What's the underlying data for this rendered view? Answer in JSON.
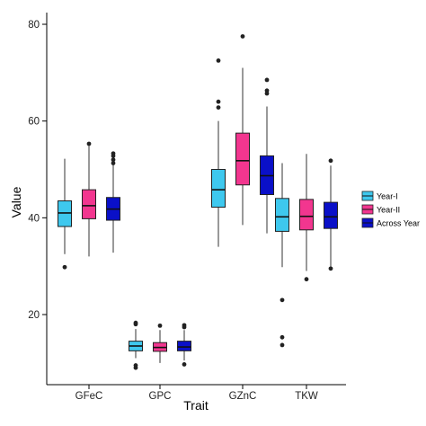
{
  "chart_data": {
    "type": "box",
    "xlabel": "Trait",
    "ylabel": "Value",
    "ylim": [
      6,
      82
    ],
    "yticks": [
      20,
      40,
      60,
      80
    ],
    "categories": [
      "GFeC",
      "GPC",
      "GZnC",
      "TKW"
    ],
    "legend_position": "right",
    "series": [
      {
        "name": "Year-I",
        "color": "#3ec8ee",
        "boxes": [
          {
            "min": 32.5,
            "q1": 38.2,
            "median": 41.0,
            "q3": 43.5,
            "max": 52.2,
            "outliers": [
              29.8
            ]
          },
          {
            "min": 11.0,
            "q1": 12.5,
            "median": 13.5,
            "q3": 14.5,
            "max": 17.0,
            "outliers": [
              18.0,
              18.3,
              9.5,
              9.0
            ]
          },
          {
            "min": 34.0,
            "q1": 42.2,
            "median": 45.8,
            "q3": 50.0,
            "max": 60.0,
            "outliers": [
              72.5,
              64.0,
              62.8
            ]
          },
          {
            "min": 29.8,
            "q1": 37.2,
            "median": 40.2,
            "q3": 44.0,
            "max": 51.3,
            "outliers": [
              23.0,
              15.3,
              13.7
            ]
          }
        ]
      },
      {
        "name": "Year-II",
        "color": "#f2368f",
        "boxes": [
          {
            "min": 32.0,
            "q1": 39.8,
            "median": 42.5,
            "q3": 45.8,
            "max": 55.0,
            "outliers": [
              55.3
            ]
          },
          {
            "min": 10.0,
            "q1": 12.4,
            "median": 13.2,
            "q3": 14.2,
            "max": 16.8,
            "outliers": [
              17.7
            ]
          },
          {
            "min": 38.5,
            "q1": 46.8,
            "median": 51.8,
            "q3": 57.5,
            "max": 71.0,
            "outliers": [
              77.5
            ]
          },
          {
            "min": 29.0,
            "q1": 37.5,
            "median": 40.3,
            "q3": 43.8,
            "max": 53.2,
            "outliers": [
              27.3
            ]
          }
        ]
      },
      {
        "name": "Across Year",
        "color": "#0a10c8",
        "boxes": [
          {
            "min": 32.8,
            "q1": 39.5,
            "median": 41.8,
            "q3": 44.2,
            "max": 51.0,
            "outliers": [
              53.3,
              52.8,
              52.0,
              51.3
            ]
          },
          {
            "min": 10.5,
            "q1": 12.5,
            "median": 13.3,
            "q3": 14.5,
            "max": 16.8,
            "outliers": [
              17.8,
              17.4,
              9.7
            ]
          },
          {
            "min": 36.8,
            "q1": 44.8,
            "median": 48.7,
            "q3": 52.8,
            "max": 63.0,
            "outliers": [
              68.5,
              66.3,
              65.7
            ]
          },
          {
            "min": 29.5,
            "q1": 37.8,
            "median": 40.2,
            "q3": 43.2,
            "max": 50.8,
            "outliers": [
              51.8,
              29.5
            ]
          }
        ]
      }
    ]
  }
}
